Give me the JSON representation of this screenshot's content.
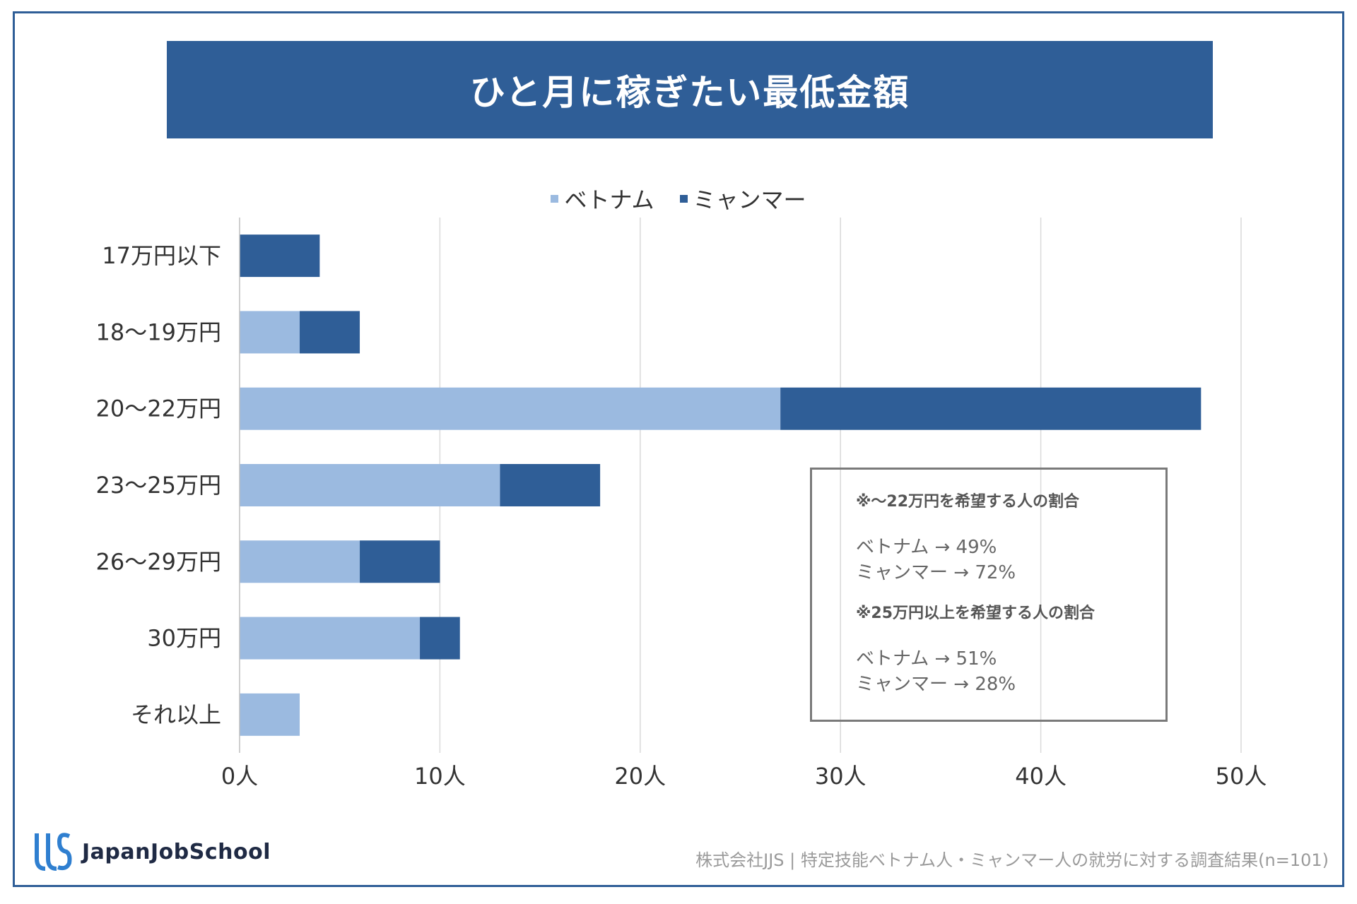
{
  "header": {
    "title": "ひと月に稼ぎたい最低金額"
  },
  "legend": [
    {
      "label": "ベトナム",
      "color": "#9bbae0"
    },
    {
      "label": "ミャンマー",
      "color": "#2f5e97"
    }
  ],
  "chart_data": {
    "type": "bar",
    "orientation": "horizontal",
    "stacked": true,
    "title": "ひと月に稼ぎたい最低金額",
    "categories": [
      "17万円以下",
      "18〜19万円",
      "20〜22万円",
      "23〜25万円",
      "26〜29万円",
      "30万円",
      "それ以上"
    ],
    "series": [
      {
        "name": "ベトナム",
        "color": "#9bbae0",
        "values": [
          0,
          3,
          27,
          13,
          6,
          9,
          3
        ]
      },
      {
        "name": "ミャンマー",
        "color": "#2f5e97",
        "values": [
          4,
          3,
          21,
          5,
          4,
          2,
          0
        ]
      }
    ],
    "xlim": [
      0,
      50
    ],
    "xticks": [
      "0人",
      "10人",
      "20人",
      "30人",
      "40人",
      "50人"
    ],
    "xtick_values": [
      0,
      10,
      20,
      30,
      40,
      50
    ],
    "grid": true,
    "legend_position": "top-center"
  },
  "note": {
    "heading1": "※〜22万円を希望する人の割合",
    "line1a": "ベトナム → 49%",
    "line1b": "ミャンマー → 72%",
    "heading2": "※25万円以上を希望する人の割合",
    "line2a": "ベトナム → 51%",
    "line2b": "ミャンマー → 28%"
  },
  "footer": {
    "logo_text": "JapanJobSchool",
    "source": "株式会社JJS | 特定技能ベトナム人・ミャンマー人の就労に対する調査結果(n=101)"
  }
}
